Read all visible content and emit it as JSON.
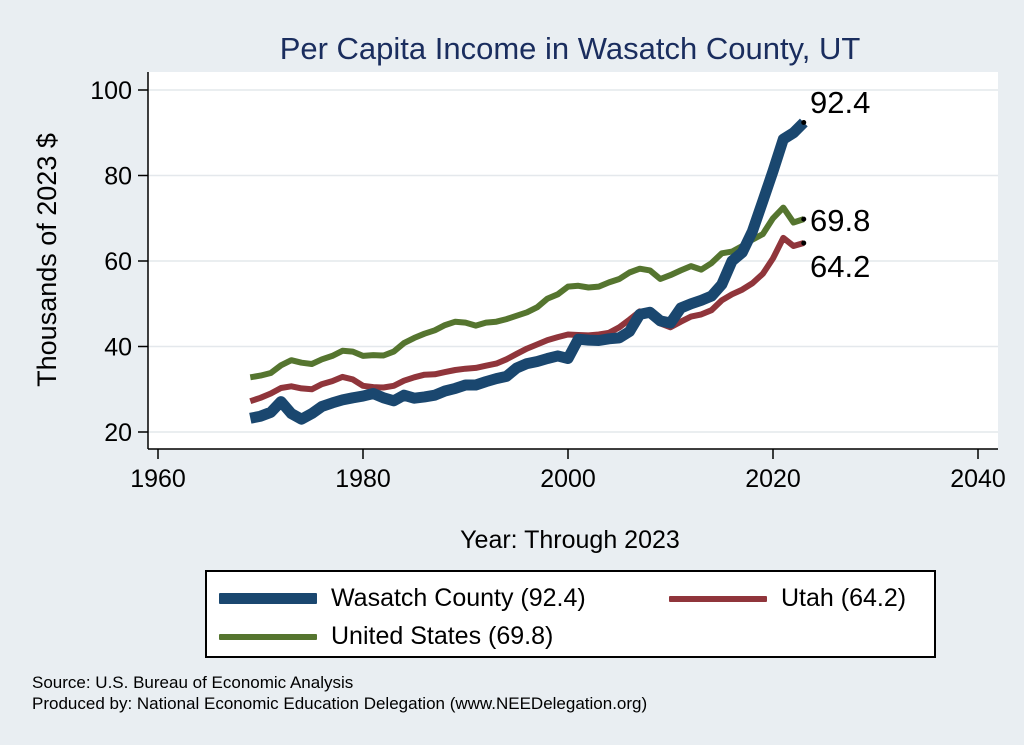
{
  "chart_data": {
    "type": "line",
    "title": "Per Capita Income in Wasatch County, UT",
    "xlabel": "Year: Through 2023",
    "ylabel": "Thousands of 2023 $",
    "xlim": [
      1960,
      2040
    ],
    "ylim": [
      20,
      100
    ],
    "xticks": [
      1960,
      1980,
      2000,
      2020,
      2040
    ],
    "yticks": [
      20,
      40,
      60,
      80,
      100
    ],
    "grid": true,
    "legend_position": "bottom",
    "x": [
      1969,
      1970,
      1971,
      1972,
      1973,
      1974,
      1975,
      1976,
      1977,
      1978,
      1979,
      1980,
      1981,
      1982,
      1983,
      1984,
      1985,
      1986,
      1987,
      1988,
      1989,
      1990,
      1991,
      1992,
      1993,
      1994,
      1995,
      1996,
      1997,
      1998,
      1999,
      2000,
      2001,
      2002,
      2003,
      2004,
      2005,
      2006,
      2007,
      2008,
      2009,
      2010,
      2011,
      2012,
      2013,
      2014,
      2015,
      2016,
      2017,
      2018,
      2019,
      2020,
      2021,
      2022,
      2023
    ],
    "series": [
      {
        "name": "Wasatch County",
        "color": "#1a476f",
        "end_label": "92.4",
        "values": [
          23.2,
          23.7,
          24.6,
          27.1,
          24.3,
          23.0,
          24.3,
          26.0,
          26.8,
          27.5,
          28.0,
          28.4,
          29.0,
          28.0,
          27.3,
          28.6,
          27.9,
          28.2,
          28.6,
          29.6,
          30.2,
          31.0,
          31.0,
          31.8,
          32.5,
          33.0,
          35.0,
          36.0,
          36.5,
          37.2,
          37.8,
          37.2,
          41.7,
          41.5,
          41.4,
          41.8,
          42.0,
          43.5,
          47.5,
          48.0,
          46.0,
          45.5,
          49.0,
          50.0,
          50.8,
          51.8,
          54.5,
          60.0,
          62.0,
          67.0,
          74.0,
          81.0,
          88.5,
          90.0,
          92.4
        ]
      },
      {
        "name": "Utah",
        "color": "#90353b",
        "end_label": "64.2",
        "values": [
          27.2,
          28.0,
          29.0,
          30.3,
          30.7,
          30.2,
          30.0,
          31.2,
          31.9,
          32.9,
          32.3,
          30.8,
          30.5,
          30.4,
          30.8,
          32.0,
          32.8,
          33.4,
          33.5,
          34.0,
          34.5,
          34.8,
          35.0,
          35.5,
          36.0,
          37.0,
          38.3,
          39.5,
          40.5,
          41.5,
          42.2,
          42.8,
          42.7,
          42.6,
          42.8,
          43.2,
          44.5,
          46.3,
          48.2,
          47.8,
          45.4,
          44.5,
          45.8,
          47.0,
          47.5,
          48.5,
          50.8,
          52.2,
          53.3,
          54.8,
          57.0,
          60.6,
          65.4,
          63.5,
          64.2
        ]
      },
      {
        "name": "United States",
        "color": "#55752f",
        "end_label": "69.8",
        "values": [
          32.8,
          33.2,
          33.8,
          35.6,
          36.8,
          36.2,
          35.9,
          37.0,
          37.8,
          39.0,
          38.8,
          37.8,
          38.0,
          37.9,
          38.8,
          40.8,
          42.0,
          43.0,
          43.8,
          45.0,
          45.8,
          45.6,
          44.9,
          45.6,
          45.8,
          46.4,
          47.2,
          48.0,
          49.2,
          51.2,
          52.2,
          54.0,
          54.2,
          53.8,
          54.0,
          55.0,
          55.8,
          57.3,
          58.2,
          57.8,
          55.8,
          56.7,
          57.8,
          58.8,
          58.0,
          59.5,
          61.8,
          62.2,
          63.5,
          65.0,
          66.3,
          70.0,
          72.5,
          69.0,
          69.8
        ]
      }
    ]
  },
  "legend": {
    "items": [
      {
        "label": "Wasatch County (92.4)",
        "color": "#1a476f"
      },
      {
        "label": "Utah (64.2)",
        "color": "#90353b"
      },
      {
        "label": "United States (69.8)",
        "color": "#55752f"
      }
    ]
  },
  "source": {
    "line1": "Source: U.S. Bureau of Economic Analysis",
    "line2": "Produced by: National Economic Education Delegation (www.NEEDelegation.org)"
  }
}
